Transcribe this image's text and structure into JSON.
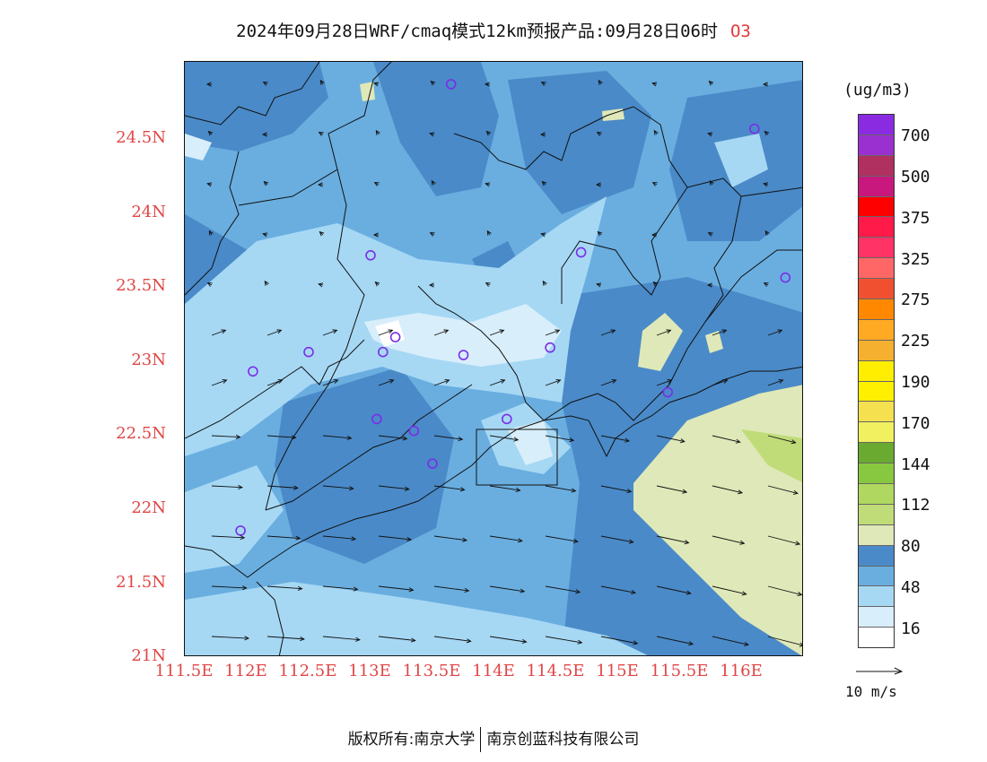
{
  "title": "2024年09月28日WRF/cmaq模式12km预报产品:09月28日06时",
  "species": "O3",
  "unit": "(ug/m3)",
  "wind_reference": "10 m/s",
  "copyright": {
    "prefix": "版权所有:",
    "org1": "南京大学",
    "org2": "南京创蓝科技有限公司"
  },
  "lat_labels": [
    "24.5N",
    "24N",
    "23.5N",
    "23N",
    "22.5N",
    "22N",
    "21.5N",
    "21N"
  ],
  "lon_labels": [
    "111.5E",
    "112E",
    "112.5E",
    "113E",
    "113.5E",
    "114E",
    "114.5E",
    "115E",
    "115.5E",
    "116E"
  ],
  "colorbar": {
    "colors_top_to_bottom": [
      "#8a2be2",
      "#9b30d0",
      "#b0305f",
      "#c8187d",
      "#ff0000",
      "#ff1a4a",
      "#ff3366",
      "#ff6666",
      "#f05030",
      "#ff8800",
      "#ffaa22",
      "#f5b030",
      "#ffee00",
      "#fff000",
      "#f5e050",
      "#f0f060",
      "#6aaa30",
      "#88c840",
      "#b0d860",
      "#c0dc78",
      "#dfe8b8",
      "#4a8ac8",
      "#6aaee0",
      "#a6d8f4",
      "#d8eefa",
      "#ffffff"
    ],
    "labels": [
      "700",
      "500",
      "375",
      "325",
      "275",
      "225",
      "190",
      "170",
      "144",
      "112",
      "80",
      "48",
      "16"
    ]
  },
  "stations": [
    {
      "lon": 113.65,
      "lat": 24.85
    },
    {
      "lon": 116.1,
      "lat": 24.55
    },
    {
      "lon": 113.0,
      "lat": 23.7
    },
    {
      "lon": 114.7,
      "lat": 23.72
    },
    {
      "lon": 116.35,
      "lat": 23.55
    },
    {
      "lon": 113.2,
      "lat": 23.15
    },
    {
      "lon": 113.1,
      "lat": 23.05
    },
    {
      "lon": 112.5,
      "lat": 23.05
    },
    {
      "lon": 112.05,
      "lat": 22.92
    },
    {
      "lon": 113.75,
      "lat": 23.03
    },
    {
      "lon": 114.45,
      "lat": 23.08
    },
    {
      "lon": 115.4,
      "lat": 22.78
    },
    {
      "lon": 113.05,
      "lat": 22.6
    },
    {
      "lon": 113.35,
      "lat": 22.52
    },
    {
      "lon": 114.1,
      "lat": 22.6
    },
    {
      "lon": 113.5,
      "lat": 22.3
    },
    {
      "lon": 111.95,
      "lat": 21.85
    }
  ]
}
